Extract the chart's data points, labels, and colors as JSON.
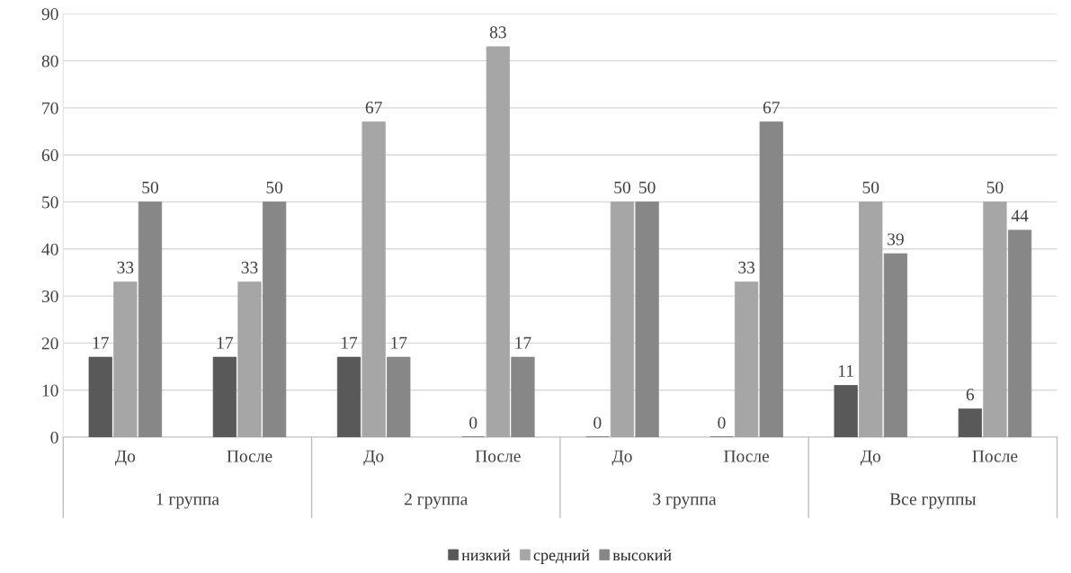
{
  "chart_data": {
    "type": "bar",
    "categories": [
      "До",
      "После",
      "До",
      "После",
      "До",
      "После",
      "До",
      "После"
    ],
    "annotations": [
      "1 группа",
      "2 группа",
      "3 группа",
      "Все группы"
    ],
    "series": [
      {
        "name": "низкий",
        "color": "#595959",
        "values": [
          17,
          17,
          17,
          0,
          0,
          0,
          11,
          6
        ]
      },
      {
        "name": "средний",
        "color": "#a6a6a6",
        "values": [
          33,
          33,
          67,
          83,
          50,
          33,
          50,
          50
        ]
      },
      {
        "name": "высокий",
        "color": "#878787",
        "values": [
          50,
          50,
          17,
          17,
          50,
          67,
          39,
          44
        ]
      }
    ],
    "ylim": [
      0,
      90
    ],
    "yticks": [
      0,
      10,
      20,
      30,
      40,
      50,
      60,
      70,
      80,
      90
    ],
    "grid": "y",
    "legend": "bottom",
    "data_labels": true
  }
}
